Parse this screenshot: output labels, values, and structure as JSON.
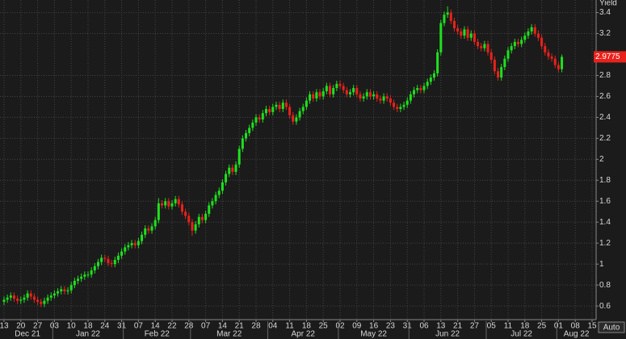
{
  "chart_data": {
    "type": "candlestick",
    "y_axis_label": "Yield",
    "open": [
      0.64,
      0.66,
      0.68,
      0.7,
      0.67,
      0.65,
      0.66,
      0.68,
      0.72,
      0.69,
      0.66,
      0.64,
      0.62,
      0.65,
      0.68,
      0.7,
      0.72,
      0.74,
      0.76,
      0.74,
      0.75,
      0.8,
      0.84,
      0.86,
      0.88,
      0.9,
      0.9,
      0.94,
      0.98,
      1.02,
      1.06,
      1.05,
      1.01,
      1.0,
      1.04,
      1.08,
      1.12,
      1.16,
      1.18,
      1.2,
      1.18,
      1.22,
      1.28,
      1.34,
      1.32,
      1.36,
      1.42,
      1.58,
      1.56,
      1.6,
      1.55,
      1.58,
      1.62,
      1.57,
      1.5,
      1.46,
      1.4,
      1.32,
      1.38,
      1.45,
      1.42,
      1.48,
      1.56,
      1.6,
      1.66,
      1.7,
      1.78,
      1.86,
      1.92,
      1.88,
      1.95,
      2.1,
      2.2,
      2.25,
      2.3,
      2.35,
      2.4,
      2.38,
      2.44,
      2.48,
      2.45,
      2.5,
      2.52,
      2.48,
      2.54,
      2.5,
      2.42,
      2.36,
      2.4,
      2.46,
      2.5,
      2.56,
      2.62,
      2.58,
      2.64,
      2.6,
      2.65,
      2.7,
      2.62,
      2.68,
      2.72,
      2.7,
      2.66,
      2.62,
      2.64,
      2.68,
      2.62,
      2.58,
      2.6,
      2.64,
      2.6,
      2.62,
      2.58,
      2.56,
      2.6,
      2.58,
      2.54,
      2.5,
      2.48,
      2.5,
      2.52,
      2.56,
      2.62,
      2.66,
      2.68,
      2.66,
      2.7,
      2.74,
      2.78,
      2.82,
      3.02,
      3.3,
      3.38,
      3.4,
      3.32,
      3.25,
      3.22,
      3.18,
      3.24,
      3.16,
      3.2,
      3.12,
      3.08,
      3.06,
      3.1,
      3.02,
      2.95,
      2.84,
      2.78,
      2.88,
      2.96,
      3.04,
      3.08,
      3.12,
      3.1,
      3.14,
      3.18,
      3.22,
      3.26,
      3.2,
      3.16,
      3.08,
      3.02,
      2.98,
      2.96,
      2.9,
      2.86
    ],
    "high": [
      0.69,
      0.71,
      0.73,
      0.73,
      0.7,
      0.69,
      0.71,
      0.75,
      0.75,
      0.72,
      0.69,
      0.67,
      0.68,
      0.71,
      0.73,
      0.75,
      0.77,
      0.79,
      0.79,
      0.78,
      0.83,
      0.87,
      0.89,
      0.91,
      0.93,
      0.93,
      0.97,
      1.01,
      1.05,
      1.09,
      1.09,
      1.08,
      1.04,
      1.07,
      1.11,
      1.15,
      1.19,
      1.21,
      1.23,
      1.23,
      1.25,
      1.31,
      1.37,
      1.37,
      1.39,
      1.45,
      1.63,
      1.61,
      1.63,
      1.63,
      1.61,
      1.65,
      1.65,
      1.6,
      1.53,
      1.49,
      1.43,
      1.41,
      1.48,
      1.48,
      1.51,
      1.59,
      1.63,
      1.69,
      1.73,
      1.81,
      1.89,
      1.95,
      1.95,
      1.98,
      2.13,
      2.23,
      2.28,
      2.33,
      2.38,
      2.43,
      2.43,
      2.47,
      2.51,
      2.51,
      2.53,
      2.55,
      2.55,
      2.57,
      2.57,
      2.53,
      2.45,
      2.43,
      2.49,
      2.53,
      2.59,
      2.65,
      2.65,
      2.67,
      2.67,
      2.68,
      2.73,
      2.73,
      2.71,
      2.75,
      2.75,
      2.73,
      2.69,
      2.67,
      2.71,
      2.71,
      2.65,
      2.63,
      2.67,
      2.67,
      2.65,
      2.65,
      2.61,
      2.63,
      2.63,
      2.61,
      2.57,
      2.53,
      2.53,
      2.55,
      2.59,
      2.65,
      2.69,
      2.71,
      2.71,
      2.73,
      2.77,
      2.81,
      2.85,
      3.05,
      3.33,
      3.41,
      3.46,
      3.43,
      3.35,
      3.28,
      3.25,
      3.27,
      3.27,
      3.23,
      3.23,
      3.15,
      3.11,
      3.13,
      3.13,
      3.05,
      2.98,
      2.87,
      2.91,
      2.99,
      3.07,
      3.11,
      3.15,
      3.15,
      3.17,
      3.21,
      3.25,
      3.29,
      3.29,
      3.23,
      3.19,
      3.11,
      3.05,
      3.01,
      2.99,
      2.93,
      3.0
    ],
    "low": [
      0.61,
      0.63,
      0.65,
      0.64,
      0.62,
      0.62,
      0.63,
      0.65,
      0.66,
      0.63,
      0.61,
      0.59,
      0.59,
      0.62,
      0.65,
      0.67,
      0.69,
      0.71,
      0.71,
      0.71,
      0.72,
      0.77,
      0.81,
      0.83,
      0.85,
      0.87,
      0.87,
      0.91,
      0.95,
      0.99,
      1.02,
      0.98,
      0.97,
      0.97,
      1.01,
      1.05,
      1.09,
      1.13,
      1.15,
      1.15,
      1.15,
      1.19,
      1.25,
      1.29,
      1.29,
      1.33,
      1.39,
      1.53,
      1.53,
      1.52,
      1.52,
      1.55,
      1.54,
      1.47,
      1.43,
      1.37,
      1.27,
      1.29,
      1.35,
      1.39,
      1.39,
      1.45,
      1.53,
      1.57,
      1.63,
      1.67,
      1.75,
      1.83,
      1.85,
      1.85,
      1.92,
      2.07,
      2.17,
      2.22,
      2.27,
      2.32,
      2.35,
      2.35,
      2.41,
      2.42,
      2.42,
      2.47,
      2.45,
      2.45,
      2.47,
      2.39,
      2.33,
      2.33,
      2.37,
      2.43,
      2.47,
      2.53,
      2.55,
      2.55,
      2.57,
      2.57,
      2.62,
      2.59,
      2.59,
      2.65,
      2.67,
      2.63,
      2.59,
      2.59,
      2.61,
      2.59,
      2.55,
      2.55,
      2.57,
      2.57,
      2.57,
      2.55,
      2.53,
      2.53,
      2.55,
      2.51,
      2.47,
      2.45,
      2.45,
      2.47,
      2.49,
      2.53,
      2.59,
      2.63,
      2.63,
      2.63,
      2.67,
      2.71,
      2.75,
      2.79,
      2.99,
      3.27,
      3.35,
      3.29,
      3.22,
      3.19,
      3.15,
      3.15,
      3.13,
      3.13,
      3.09,
      3.05,
      3.03,
      3.03,
      2.99,
      2.92,
      2.81,
      2.75,
      2.75,
      2.85,
      2.93,
      3.01,
      3.05,
      3.07,
      3.07,
      3.11,
      3.15,
      3.19,
      3.17,
      3.13,
      3.05,
      2.99,
      2.95,
      2.93,
      2.87,
      2.83,
      2.83
    ],
    "close": [
      0.66,
      0.68,
      0.7,
      0.67,
      0.65,
      0.66,
      0.68,
      0.72,
      0.69,
      0.66,
      0.64,
      0.62,
      0.65,
      0.68,
      0.7,
      0.72,
      0.74,
      0.76,
      0.74,
      0.75,
      0.8,
      0.84,
      0.86,
      0.88,
      0.9,
      0.9,
      0.94,
      0.98,
      1.02,
      1.06,
      1.05,
      1.01,
      1.0,
      1.04,
      1.08,
      1.12,
      1.16,
      1.18,
      1.2,
      1.18,
      1.22,
      1.28,
      1.34,
      1.32,
      1.36,
      1.42,
      1.58,
      1.56,
      1.6,
      1.55,
      1.58,
      1.62,
      1.57,
      1.5,
      1.46,
      1.4,
      1.32,
      1.38,
      1.45,
      1.42,
      1.48,
      1.56,
      1.6,
      1.66,
      1.7,
      1.78,
      1.86,
      1.92,
      1.88,
      1.95,
      2.1,
      2.2,
      2.25,
      2.3,
      2.35,
      2.4,
      2.38,
      2.44,
      2.48,
      2.45,
      2.5,
      2.52,
      2.48,
      2.54,
      2.5,
      2.42,
      2.36,
      2.4,
      2.46,
      2.5,
      2.56,
      2.62,
      2.58,
      2.64,
      2.6,
      2.65,
      2.7,
      2.62,
      2.68,
      2.72,
      2.7,
      2.66,
      2.62,
      2.64,
      2.68,
      2.62,
      2.58,
      2.6,
      2.64,
      2.6,
      2.62,
      2.58,
      2.56,
      2.6,
      2.58,
      2.54,
      2.5,
      2.48,
      2.5,
      2.52,
      2.56,
      2.62,
      2.66,
      2.68,
      2.66,
      2.7,
      2.74,
      2.78,
      2.82,
      3.02,
      3.3,
      3.38,
      3.4,
      3.32,
      3.25,
      3.22,
      3.18,
      3.24,
      3.16,
      3.2,
      3.12,
      3.08,
      3.06,
      3.1,
      3.02,
      2.95,
      2.84,
      2.78,
      2.88,
      2.96,
      3.04,
      3.08,
      3.12,
      3.1,
      3.14,
      3.18,
      3.22,
      3.26,
      3.2,
      3.16,
      3.08,
      3.02,
      2.98,
      2.96,
      2.9,
      2.86,
      2.9775
    ],
    "up_color": "#1fe01f",
    "down_color": "#e8221c",
    "xlim": [
      -1.2,
      176.2
    ],
    "ylim": [
      0.47,
      3.52
    ],
    "xticks": [
      {
        "value": 0,
        "label": "13"
      },
      {
        "value": 5,
        "label": "20"
      },
      {
        "value": 10,
        "label": "27"
      },
      {
        "value": 15,
        "label": "03"
      },
      {
        "value": 20,
        "label": "10"
      },
      {
        "value": 25,
        "label": "18"
      },
      {
        "value": 30,
        "label": "24"
      },
      {
        "value": 35,
        "label": "31"
      },
      {
        "value": 40,
        "label": "07"
      },
      {
        "value": 45,
        "label": "14"
      },
      {
        "value": 50,
        "label": "22"
      },
      {
        "value": 55,
        "label": "28"
      },
      {
        "value": 60,
        "label": "07"
      },
      {
        "value": 65,
        "label": "14"
      },
      {
        "value": 70,
        "label": "21"
      },
      {
        "value": 75,
        "label": "28"
      },
      {
        "value": 80,
        "label": "04"
      },
      {
        "value": 85,
        "label": "11"
      },
      {
        "value": 90,
        "label": "18"
      },
      {
        "value": 95,
        "label": "25"
      },
      {
        "value": 100,
        "label": "02"
      },
      {
        "value": 105,
        "label": "09"
      },
      {
        "value": 110,
        "label": "16"
      },
      {
        "value": 115,
        "label": "23"
      },
      {
        "value": 120,
        "label": "31"
      },
      {
        "value": 125,
        "label": "06"
      },
      {
        "value": 130,
        "label": "13"
      },
      {
        "value": 135,
        "label": "21"
      },
      {
        "value": 140,
        "label": "27"
      },
      {
        "value": 145,
        "label": "05"
      },
      {
        "value": 150,
        "label": "11"
      },
      {
        "value": 155,
        "label": "18"
      },
      {
        "value": 160,
        "label": "25"
      },
      {
        "value": 165,
        "label": "01"
      },
      {
        "value": 170,
        "label": "08"
      },
      {
        "value": 175,
        "label": "15"
      }
    ],
    "months": [
      {
        "value": 0,
        "label": "Dec 21"
      },
      {
        "value": 15,
        "label": "Jan 22"
      },
      {
        "value": 36,
        "label": "Feb 22"
      },
      {
        "value": 56,
        "label": "Mar 22"
      },
      {
        "value": 79,
        "label": "Apr 22"
      },
      {
        "value": 100,
        "label": "May 22"
      },
      {
        "value": 121,
        "label": "Jun 22"
      },
      {
        "value": 144,
        "label": "Jul 22"
      },
      {
        "value": 165,
        "label": "Aug 22"
      }
    ],
    "yticks": [
      0.6,
      0.8,
      1,
      1.2,
      1.4,
      1.6,
      1.8,
      2,
      2.2,
      2.4,
      2.6,
      2.8,
      3.2,
      3.4
    ],
    "grid": true,
    "last_price": {
      "value": 2.9775,
      "label": "2.9775"
    },
    "last_price_color": "#e8221c"
  },
  "controls": {
    "auto": "Auto"
  }
}
